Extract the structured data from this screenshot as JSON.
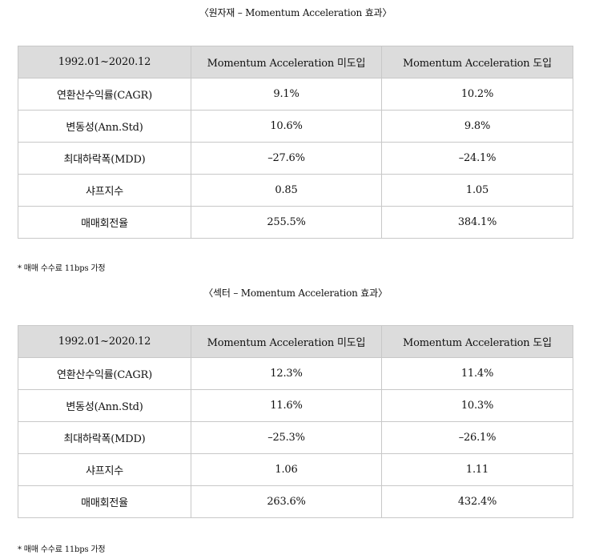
{
  "section1": {
    "caption": "〈원자재 – Momentum Acceleration 효과〉",
    "headers": [
      "1992.01~2020.12",
      "Momentum Acceleration 미도입",
      "Momentum Acceleration 도입"
    ],
    "rows": [
      [
        "연환산수익률(CAGR)",
        "9.1%",
        "10.2%"
      ],
      [
        "변동성(Ann.Std)",
        "10.6%",
        "9.8%"
      ],
      [
        "최대하락폭(MDD)",
        "–27.6%",
        "–24.1%"
      ],
      [
        "샤프지수",
        "0.85",
        "1.05"
      ],
      [
        "매매회전율",
        "255.5%",
        "384.1%"
      ]
    ],
    "note": "* 매매 수수료 11bps 가정"
  },
  "section2": {
    "caption": "〈섹터 – Momentum Acceleration 효과〉",
    "headers": [
      "1992.01~2020.12",
      "Momentum Acceleration 미도입",
      "Momentum Acceleration 도입"
    ],
    "rows": [
      [
        "연환산수익률(CAGR)",
        "12.3%",
        "11.4%"
      ],
      [
        "변동성(Ann.Std)",
        "11.6%",
        "10.3%"
      ],
      [
        "최대하락폭(MDD)",
        "–25.3%",
        "–26.1%"
      ],
      [
        "샤프지수",
        "1.06",
        "1.11"
      ],
      [
        "매매회전율",
        "263.6%",
        "432.4%"
      ]
    ],
    "note": "* 매매 수수료 11bps 가정"
  }
}
